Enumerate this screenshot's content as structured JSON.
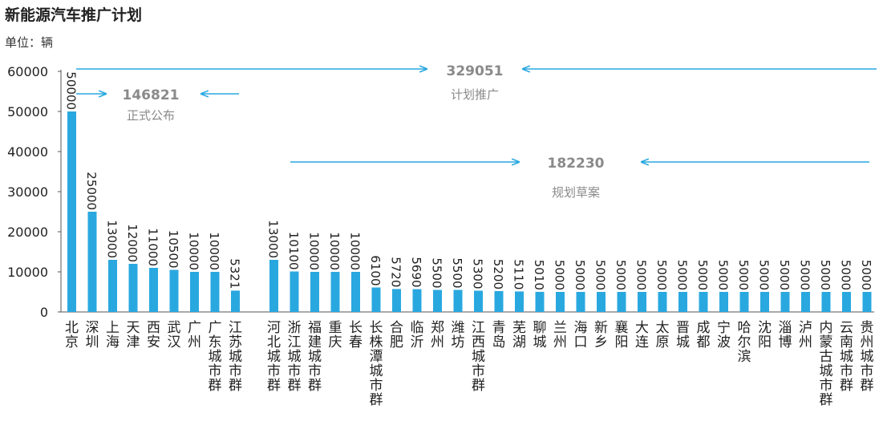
{
  "chart_data": {
    "type": "bar",
    "title": "新能源汽车推广计划",
    "unit_label": "单位：辆",
    "ylim": [
      0,
      60000
    ],
    "yticks": [
      0,
      10000,
      20000,
      30000,
      40000,
      50000,
      60000
    ],
    "grid": false,
    "color": "#29a8e0",
    "groups": [
      {
        "name": "正式公布",
        "total": "146821",
        "categories": [
          "北京",
          "深圳",
          "上海",
          "天津",
          "西安",
          "武汉",
          "广州",
          "广东城市群",
          "江苏城市群"
        ],
        "values": [
          50000,
          25000,
          13000,
          12000,
          11000,
          10500,
          10000,
          10000,
          5321
        ]
      },
      {
        "name": "规划草案",
        "total": "182230",
        "categories": [
          "河北城市群",
          "浙江城市群",
          "福建城市群",
          "重庆",
          "长春",
          "长株潭城市群",
          "合肥",
          "临沂",
          "郑州",
          "潍坊",
          "江西城市群",
          "青岛",
          "芜湖",
          "聊城",
          "兰州",
          "海口",
          "新乡",
          "襄阳",
          "大连",
          "太原",
          "晋城",
          "成都",
          "宁波",
          "哈尔滨",
          "沈阳",
          "淄博",
          "泸州",
          "内蒙古城市群",
          "云南城市群",
          "贵州城市群"
        ],
        "values": [
          13000,
          10100,
          10000,
          10000,
          10000,
          6100,
          5720,
          5690,
          5500,
          5500,
          5300,
          5200,
          5110,
          5010,
          5000,
          5000,
          5000,
          5000,
          5000,
          5000,
          5000,
          5000,
          5000,
          5000,
          5000,
          5000,
          5000,
          5000,
          5000,
          5000
        ]
      }
    ],
    "overall": {
      "name": "计划推广",
      "total": "329051"
    }
  }
}
